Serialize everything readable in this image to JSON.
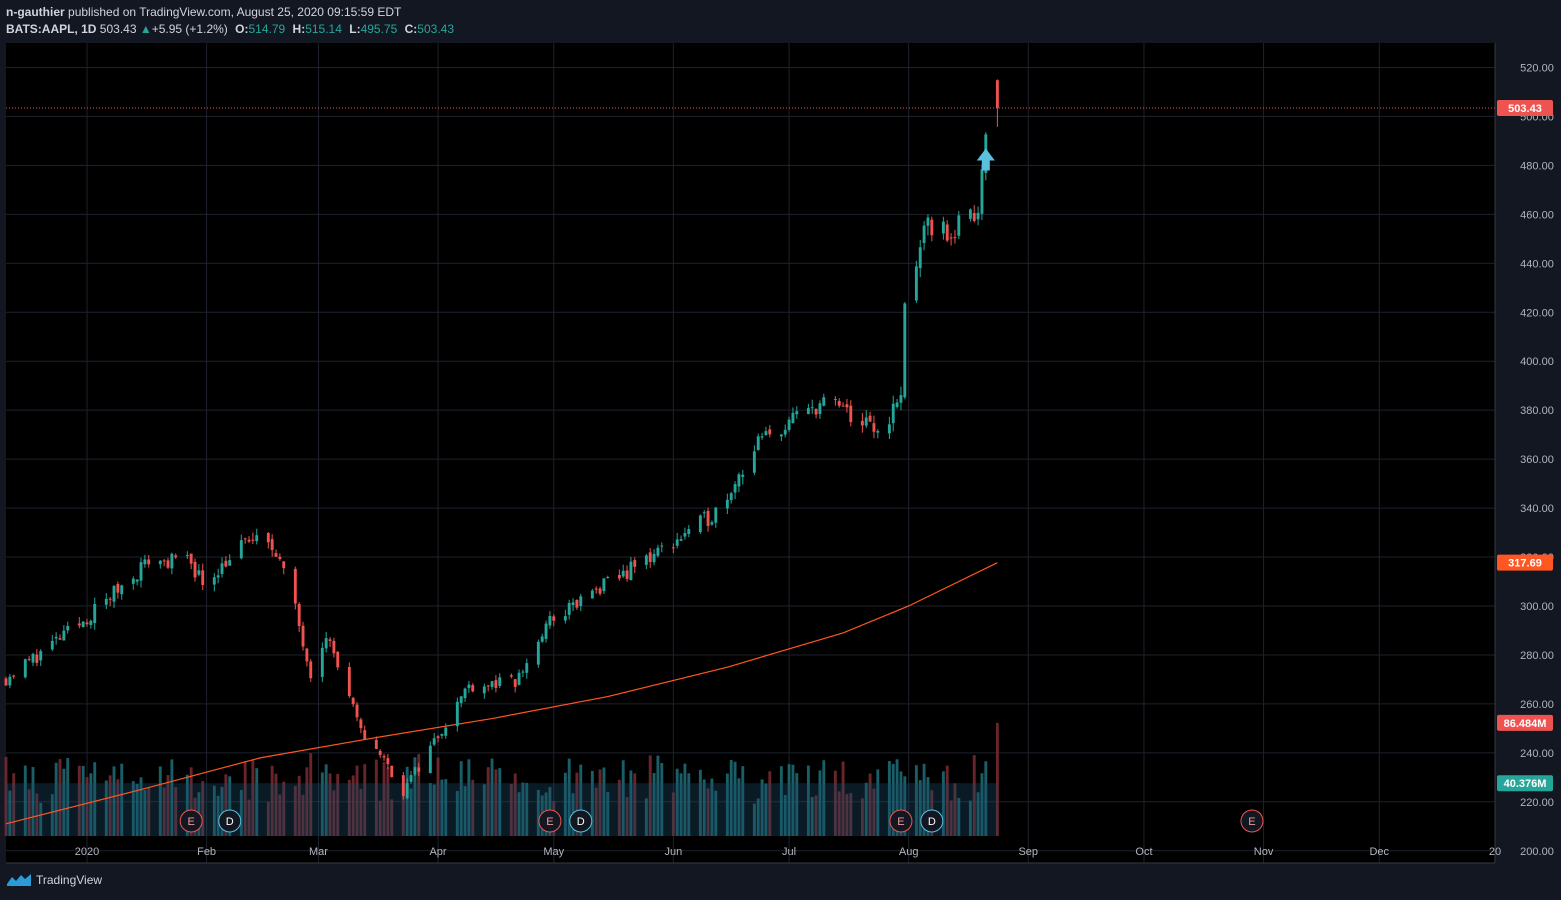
{
  "header": {
    "author": "n-gauthier",
    "published_text": "published on TradingView.com, August 25, 2020 09:15:59 EDT",
    "symbol": "BATS:AAPL, 1D",
    "last": "503.43",
    "change_arrow": "▲",
    "change": "+5.95 (+1.2%)",
    "o_label": "O:",
    "o_value": "514.79",
    "h_label": "H:",
    "h_value": "515.14",
    "l_label": "L:",
    "l_value": "495.75",
    "c_label": "C:",
    "c_value": "503.43"
  },
  "footer": {
    "brand": "TradingView",
    "logo_icon": "tradingview-logo-icon"
  },
  "colors": {
    "background": "#131722",
    "plot_background": "#000000",
    "up": "#26a69a",
    "down": "#ef5350",
    "ma": "#ff5722",
    "volume_ma": "#1e4d6b",
    "grid": "#1e222d"
  },
  "chart_data": {
    "type": "candlestick",
    "ylim": [
      195,
      530
    ],
    "xlim": [
      "2019-12-11",
      "2020-12-31"
    ],
    "y_ticks": [
      "200.00",
      "220.00",
      "240.00",
      "260.00",
      "280.00",
      "300.00",
      "320.00",
      "340.00",
      "360.00",
      "380.00",
      "400.00",
      "420.00",
      "440.00",
      "460.00",
      "480.00",
      "500.00",
      "520.00"
    ],
    "x_ticks": [
      {
        "label": "2020",
        "date": "2020-01-01"
      },
      {
        "label": "Feb",
        "date": "2020-02-01"
      },
      {
        "label": "Mar",
        "date": "2020-03-01"
      },
      {
        "label": "Apr",
        "date": "2020-04-01"
      },
      {
        "label": "May",
        "date": "2020-05-01"
      },
      {
        "label": "Jun",
        "date": "2020-06-01"
      },
      {
        "label": "Jul",
        "date": "2020-07-01"
      },
      {
        "label": "Aug",
        "date": "2020-08-01"
      },
      {
        "label": "Sep",
        "date": "2020-09-01"
      },
      {
        "label": "Oct",
        "date": "2020-10-01"
      },
      {
        "label": "Nov",
        "date": "2020-11-01"
      },
      {
        "label": "Dec",
        "date": "2020-12-01"
      },
      {
        "label": "20",
        "date": "2020-12-31"
      }
    ],
    "closes": [
      {
        "date": "2019-12-11",
        "close": 270.5
      },
      {
        "date": "2019-12-31",
        "close": 293.6
      },
      {
        "date": "2020-01-17",
        "close": 318.7
      },
      {
        "date": "2020-01-24",
        "close": 318.3
      },
      {
        "date": "2020-01-28",
        "close": 317.7
      },
      {
        "date": "2020-01-31",
        "close": 309.5
      },
      {
        "date": "2020-02-12",
        "close": 327.2
      },
      {
        "date": "2020-02-19",
        "close": 323.6
      },
      {
        "date": "2020-02-24",
        "close": 298.2
      },
      {
        "date": "2020-02-28",
        "close": 273.4
      },
      {
        "date": "2020-03-03",
        "close": 289.3
      },
      {
        "date": "2020-03-12",
        "close": 248.2
      },
      {
        "date": "2020-03-16",
        "close": 242.2
      },
      {
        "date": "2020-03-23",
        "close": 224.4
      },
      {
        "date": "2020-04-09",
        "close": 267.9
      },
      {
        "date": "2020-04-21",
        "close": 268.4
      },
      {
        "date": "2020-04-30",
        "close": 293.8
      },
      {
        "date": "2020-05-19",
        "close": 313.1
      },
      {
        "date": "2020-06-08",
        "close": 333.5
      },
      {
        "date": "2020-06-12",
        "close": 338.8
      },
      {
        "date": "2020-06-23",
        "close": 366.5
      },
      {
        "date": "2020-07-09",
        "close": 383.0
      },
      {
        "date": "2020-07-13",
        "close": 381.9
      },
      {
        "date": "2020-07-24",
        "close": 370.5
      },
      {
        "date": "2020-07-30",
        "close": 384.8
      },
      {
        "date": "2020-07-31",
        "close": 425.0
      },
      {
        "date": "2020-08-06",
        "close": 455.6
      },
      {
        "date": "2020-08-12",
        "close": 452.0
      },
      {
        "date": "2020-08-19",
        "close": 462.8
      },
      {
        "date": "2020-08-21",
        "close": 497.5
      },
      {
        "date": "2020-08-24",
        "close": 503.43
      }
    ],
    "ma": {
      "last_value": "317.69",
      "points": [
        {
          "date": "2019-12-11",
          "value": 211
        },
        {
          "date": "2020-01-15",
          "value": 225
        },
        {
          "date": "2020-02-15",
          "value": 238
        },
        {
          "date": "2020-03-15",
          "value": 246
        },
        {
          "date": "2020-04-15",
          "value": 254
        },
        {
          "date": "2020-05-15",
          "value": 263
        },
        {
          "date": "2020-06-15",
          "value": 275
        },
        {
          "date": "2020-07-15",
          "value": 289
        },
        {
          "date": "2020-08-01",
          "value": 300
        },
        {
          "date": "2020-08-24",
          "value": 317.69
        }
      ]
    },
    "volume": {
      "last_label": "86.484M",
      "avg_label": "40.376M",
      "last_value": 86.484,
      "avg_value": 40.376,
      "max": 130
    },
    "current_price_label": "503.43",
    "events": [
      {
        "label": "E",
        "date": "2020-01-28"
      },
      {
        "label": "D",
        "date": "2020-02-07"
      },
      {
        "label": "E",
        "date": "2020-04-30"
      },
      {
        "label": "D",
        "date": "2020-05-08"
      },
      {
        "label": "E",
        "date": "2020-07-30"
      },
      {
        "label": "D",
        "date": "2020-08-07"
      },
      {
        "label": "E",
        "date": "2020-10-29"
      }
    ],
    "arrow_icon": "up-arrow-icon"
  }
}
